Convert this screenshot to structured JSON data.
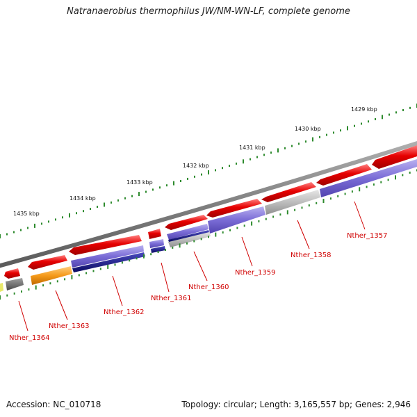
{
  "title": "Natranaerobius thermophilus JW/NM-WN-LF, complete genome",
  "footer": {
    "accession": "Accession: NC_010718",
    "summary": "Topology: circular; Length: 3,165,557 bp; Genes: 2,946"
  },
  "colors": {
    "backbone": "#8a8a8a",
    "tick": "#2e8b2e",
    "forward_gene": "#e60000",
    "reverse_gene": "#7a6cd6",
    "hypothetical": "#b8b8b8",
    "rna": "#f59a1a",
    "dark_strand": "#1a1a8c",
    "label": "#d00000"
  },
  "scale_labels": [
    "1429 kbp",
    "1430 kbp",
    "1431 kbp",
    "1432 kbp",
    "1433 kbp",
    "1434 kbp",
    "1435 kbp"
  ],
  "gene_labels": [
    "Nther_1357",
    "Nther_1358",
    "Nther_1359",
    "Nther_1360",
    "Nther_1361",
    "Nther_1362",
    "Nther_1363",
    "Nther_1364"
  ]
}
